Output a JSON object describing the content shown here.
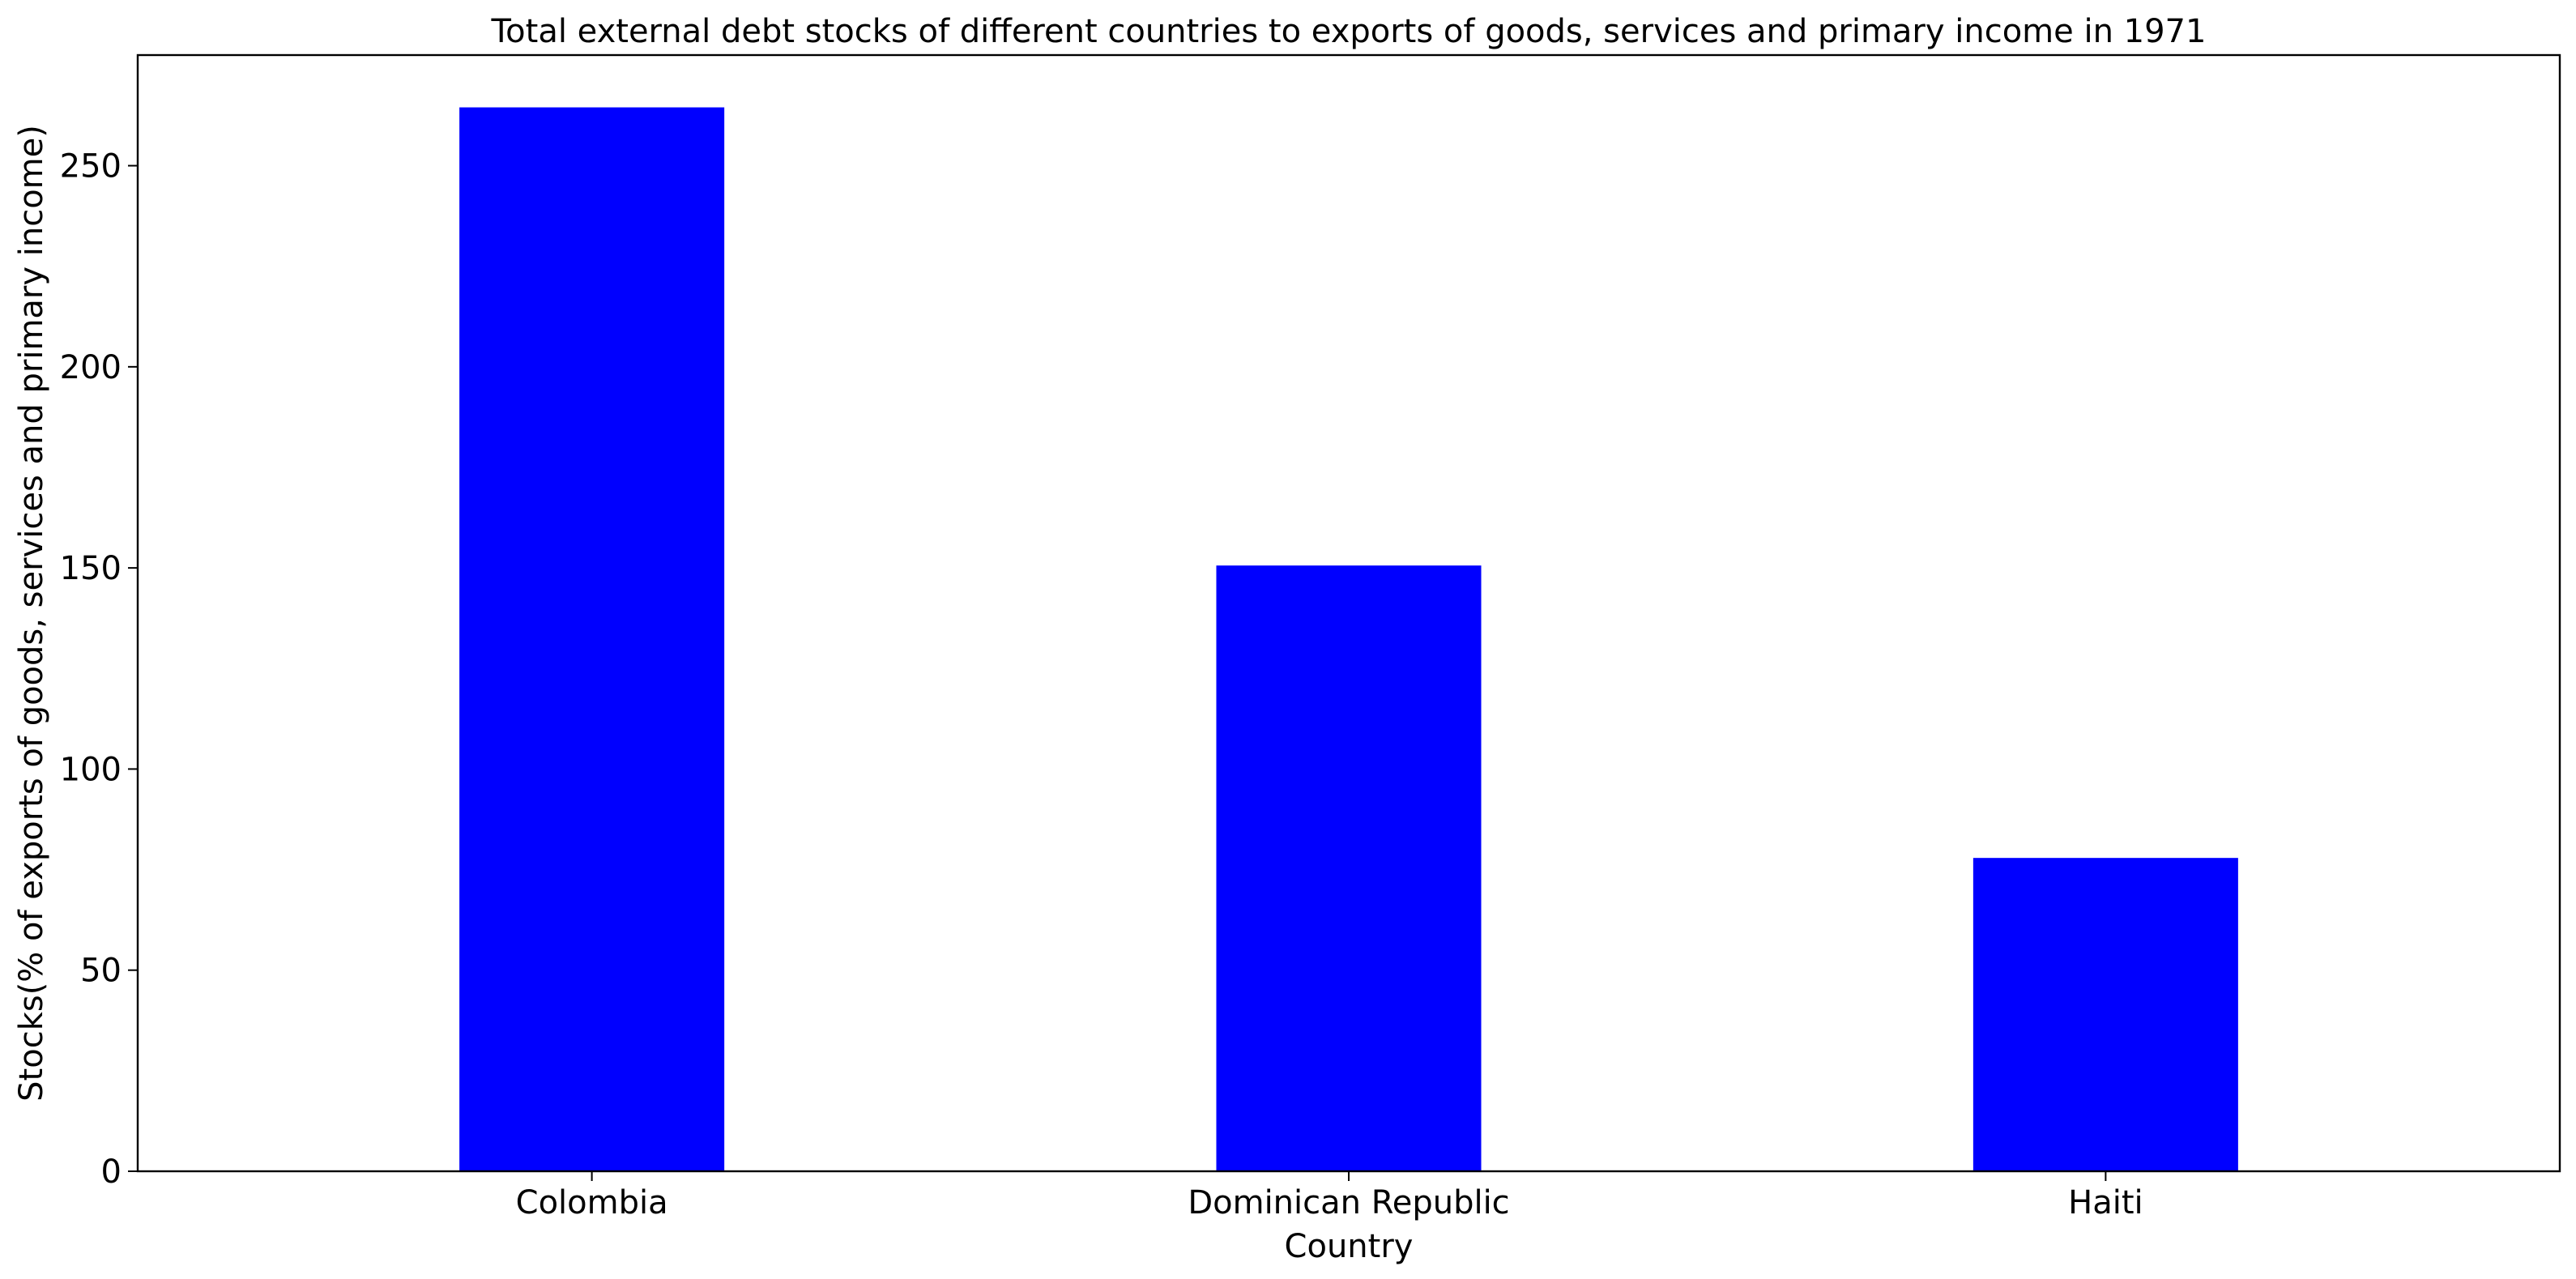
{
  "chart_data": {
    "type": "bar",
    "title": "Total external debt stocks of different countries to exports of goods, services and primary income in 1971",
    "xlabel": "Country",
    "ylabel": "Stocks(% of exports of goods, services and primary income)",
    "categories": [
      "Colombia",
      "Dominican Republic",
      "Haiti"
    ],
    "values": [
      264.5,
      150.6,
      77.9
    ],
    "ylim": [
      0,
      277.5
    ],
    "yticks": [
      0,
      50,
      100,
      150,
      200,
      250
    ],
    "bar_color": "#0000ff",
    "grid": false,
    "legend": "none"
  }
}
